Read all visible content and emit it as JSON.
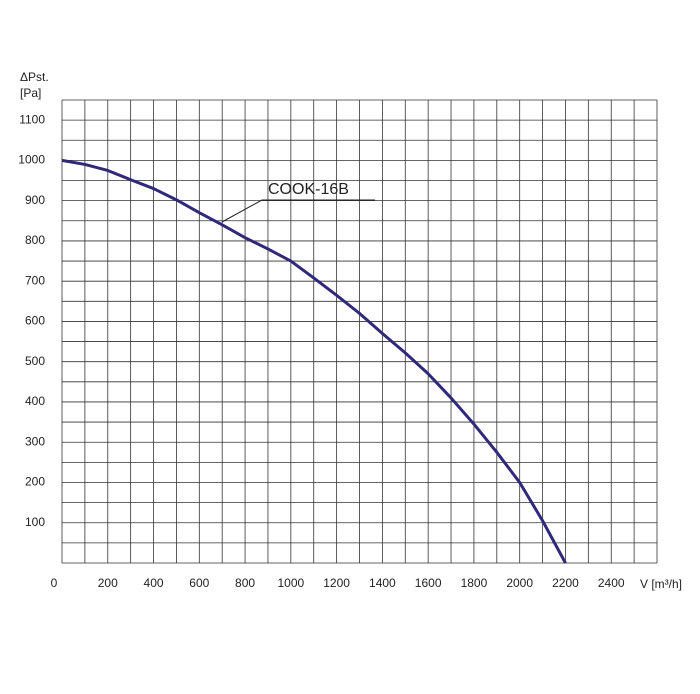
{
  "chart_data": {
    "type": "line",
    "ylabel_line1": "ΔPst.",
    "ylabel_line2": "[Pa]",
    "xlabel": "V [m³/h]",
    "annotation": "COOK-16B",
    "x": [
      0,
      100,
      200,
      300,
      400,
      500,
      600,
      700,
      800,
      900,
      1000,
      1100,
      1200,
      1300,
      1400,
      1500,
      1600,
      1700,
      1800,
      1900,
      2000,
      2100,
      2200
    ],
    "series": [
      {
        "name": "COOK-16B",
        "color": "#30287a",
        "values": [
          1000,
          990,
          975,
          952,
          930,
          902,
          870,
          840,
          808,
          780,
          750,
          708,
          665,
          620,
          570,
          522,
          470,
          410,
          345,
          275,
          200,
          105,
          0
        ]
      }
    ],
    "xlim": [
      0,
      2600
    ],
    "ylim": [
      0,
      1150
    ],
    "xticks": [
      0,
      200,
      400,
      600,
      800,
      1000,
      1200,
      1400,
      1600,
      1800,
      2000,
      2200,
      2400
    ],
    "yticks": [
      100,
      200,
      300,
      400,
      500,
      600,
      700,
      800,
      900,
      1000,
      1100
    ],
    "xgrid": [
      0,
      100,
      200,
      300,
      400,
      500,
      600,
      700,
      800,
      900,
      1000,
      1100,
      1200,
      1300,
      1400,
      1500,
      1600,
      1700,
      1800,
      1900,
      2000,
      2100,
      2200,
      2300,
      2400,
      2500,
      2600
    ],
    "ygrid": [
      0,
      50,
      100,
      150,
      200,
      250,
      300,
      350,
      400,
      450,
      500,
      550,
      600,
      650,
      700,
      750,
      800,
      850,
      900,
      950,
      1000,
      1050,
      1100,
      1150
    ],
    "grid": true
  }
}
